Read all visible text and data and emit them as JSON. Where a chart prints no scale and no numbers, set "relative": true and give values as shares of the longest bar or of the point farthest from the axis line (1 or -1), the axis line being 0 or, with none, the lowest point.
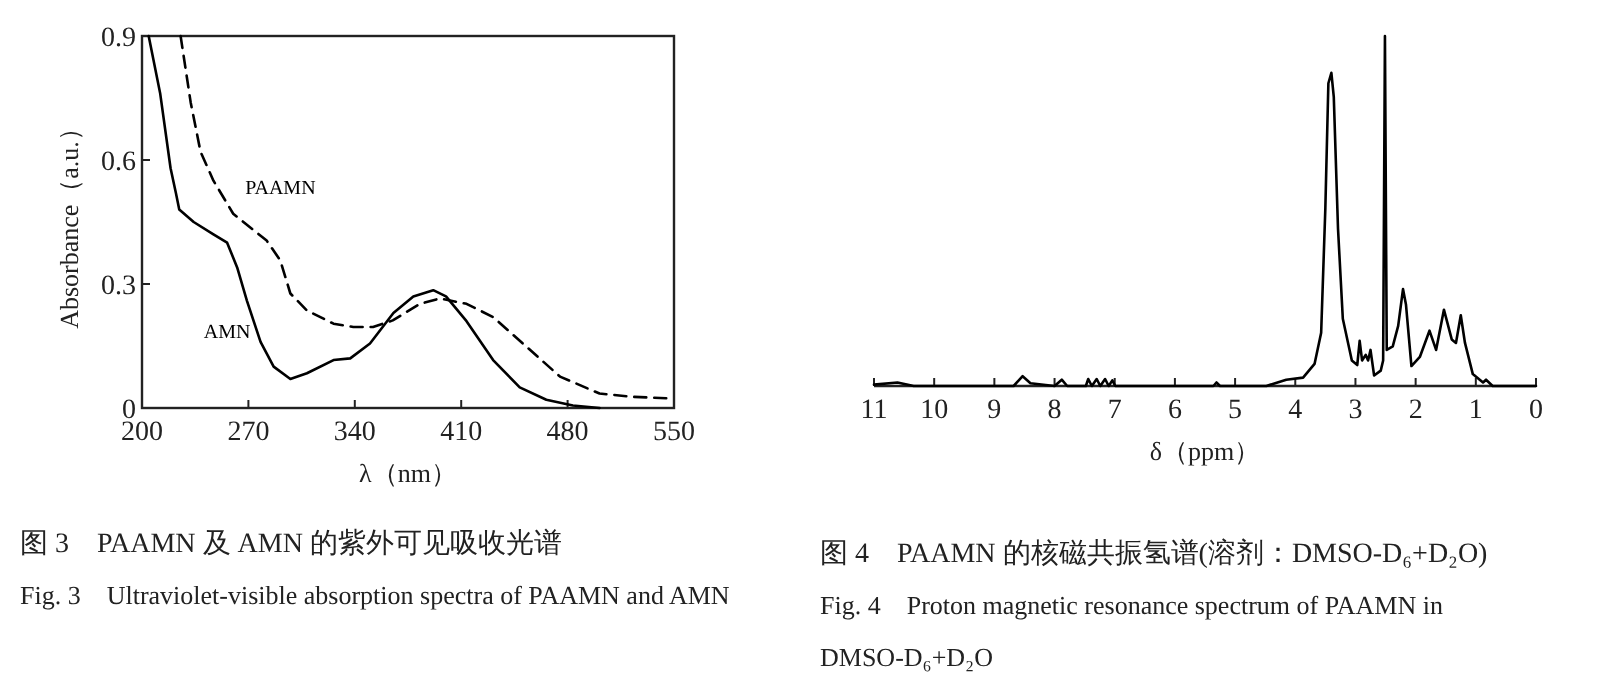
{
  "chart_data": [
    {
      "type": "line",
      "xlabel": "λ（nm）",
      "ylabel": "Absorbance（a.u.）",
      "xlim": [
        200,
        550
      ],
      "ylim": [
        0,
        0.9
      ],
      "xticks": [
        200,
        270,
        340,
        410,
        480,
        550
      ],
      "yticks": [
        0,
        0.3,
        0.6,
        0.9
      ],
      "series": [
        {
          "name": "AMN",
          "color": "#000000",
          "line_style": "solid",
          "x": [
            204.4,
            212,
            218.8,
            222.3,
            224.5,
            234,
            247,
            256,
            262.6,
            269,
            278,
            286.6,
            297.6,
            308.5,
            326,
            337,
            350,
            365.4,
            378.5,
            391.6,
            400,
            413.5,
            431,
            448.5,
            466,
            483.5,
            501
          ],
          "values": [
            0.9,
            0.76,
            0.58,
            0.52,
            0.48,
            0.45,
            0.42,
            0.4,
            0.34,
            0.26,
            0.16,
            0.1,
            0.07,
            0.084,
            0.116,
            0.12,
            0.156,
            0.23,
            0.27,
            0.285,
            0.27,
            0.21,
            0.116,
            0.05,
            0.02,
            0.006,
            0
          ]
        },
        {
          "name": "PAAMN",
          "color": "#000000",
          "line_style": "dashed",
          "x": [
            225.4,
            232,
            238.5,
            247,
            260,
            273.5,
            282,
            291,
            297.6,
            308.5,
            326,
            339,
            352,
            365,
            382.9,
            396,
            413.5,
            431,
            453,
            475,
            501,
            523,
            549
          ],
          "values": [
            0.9,
            0.74,
            0.62,
            0.55,
            0.47,
            0.43,
            0.405,
            0.357,
            0.277,
            0.236,
            0.204,
            0.196,
            0.196,
            0.212,
            0.252,
            0.265,
            0.252,
            0.22,
            0.148,
            0.076,
            0.035,
            0.027,
            0.023
          ]
        }
      ],
      "annotations": [
        "图 3　PAAMN 及 AMN 的紫外可见吸收光谱",
        "Fig. 3　Ultraviolet-visible absorption spectra of PAAMN and AMN"
      ]
    },
    {
      "type": "line",
      "relative": true,
      "xlabel": "δ（ppm）",
      "xlim": [
        11,
        0
      ],
      "xticks": [
        11,
        10,
        9,
        8,
        7,
        6,
        5,
        4,
        3,
        2,
        1,
        0
      ],
      "series": [
        {
          "color": "#000000",
          "line_style": "solid",
          "x": [
            11.0,
            10.61,
            10.34,
            8.68,
            8.53,
            8.4,
            8.0,
            7.88,
            7.79,
            7.48,
            7.44,
            7.38,
            7.3,
            7.24,
            7.16,
            7.1,
            7.04,
            6.99,
            5.36,
            5.31,
            5.25,
            4.48,
            4.15,
            3.87,
            3.68,
            3.57,
            3.5,
            3.45,
            3.4,
            3.36,
            3.29,
            3.21,
            3.06,
            2.97,
            2.93,
            2.89,
            2.83,
            2.79,
            2.75,
            2.69,
            2.58,
            2.54,
            2.51,
            2.48,
            2.38,
            2.29,
            2.21,
            2.16,
            2.07,
            1.93,
            1.77,
            1.66,
            1.53,
            1.4,
            1.33,
            1.25,
            1.18,
            1.05,
            0.88,
            0.83,
            0.72,
            0
          ],
          "values": [
            0.004,
            0.01,
            0,
            0,
            0.028,
            0.008,
            0,
            0.018,
            0,
            0,
            0.02,
            0,
            0.02,
            0,
            0.02,
            0,
            0.016,
            0,
            0,
            0.01,
            0,
            0,
            0.018,
            0.024,
            0.063,
            0.152,
            0.509,
            0.865,
            0.895,
            0.826,
            0.45,
            0.192,
            0.073,
            0.06,
            0.129,
            0.073,
            0.089,
            0.073,
            0.103,
            0.03,
            0.044,
            0.073,
            1.0,
            0.103,
            0.113,
            0.172,
            0.277,
            0.232,
            0.057,
            0.083,
            0.158,
            0.103,
            0.218,
            0.133,
            0.123,
            0.202,
            0.123,
            0.034,
            0.01,
            0.018,
            0,
            0
          ]
        }
      ],
      "annotations": [
        "图 4　PAAMN 的核磁共振氢谱(溶剂：DMSO-D₆+D₂O)",
        "Fig. 4　Proton magnetic resonance spectrum of PAAMN in DMSO-D₆+D₂O"
      ]
    }
  ]
}
